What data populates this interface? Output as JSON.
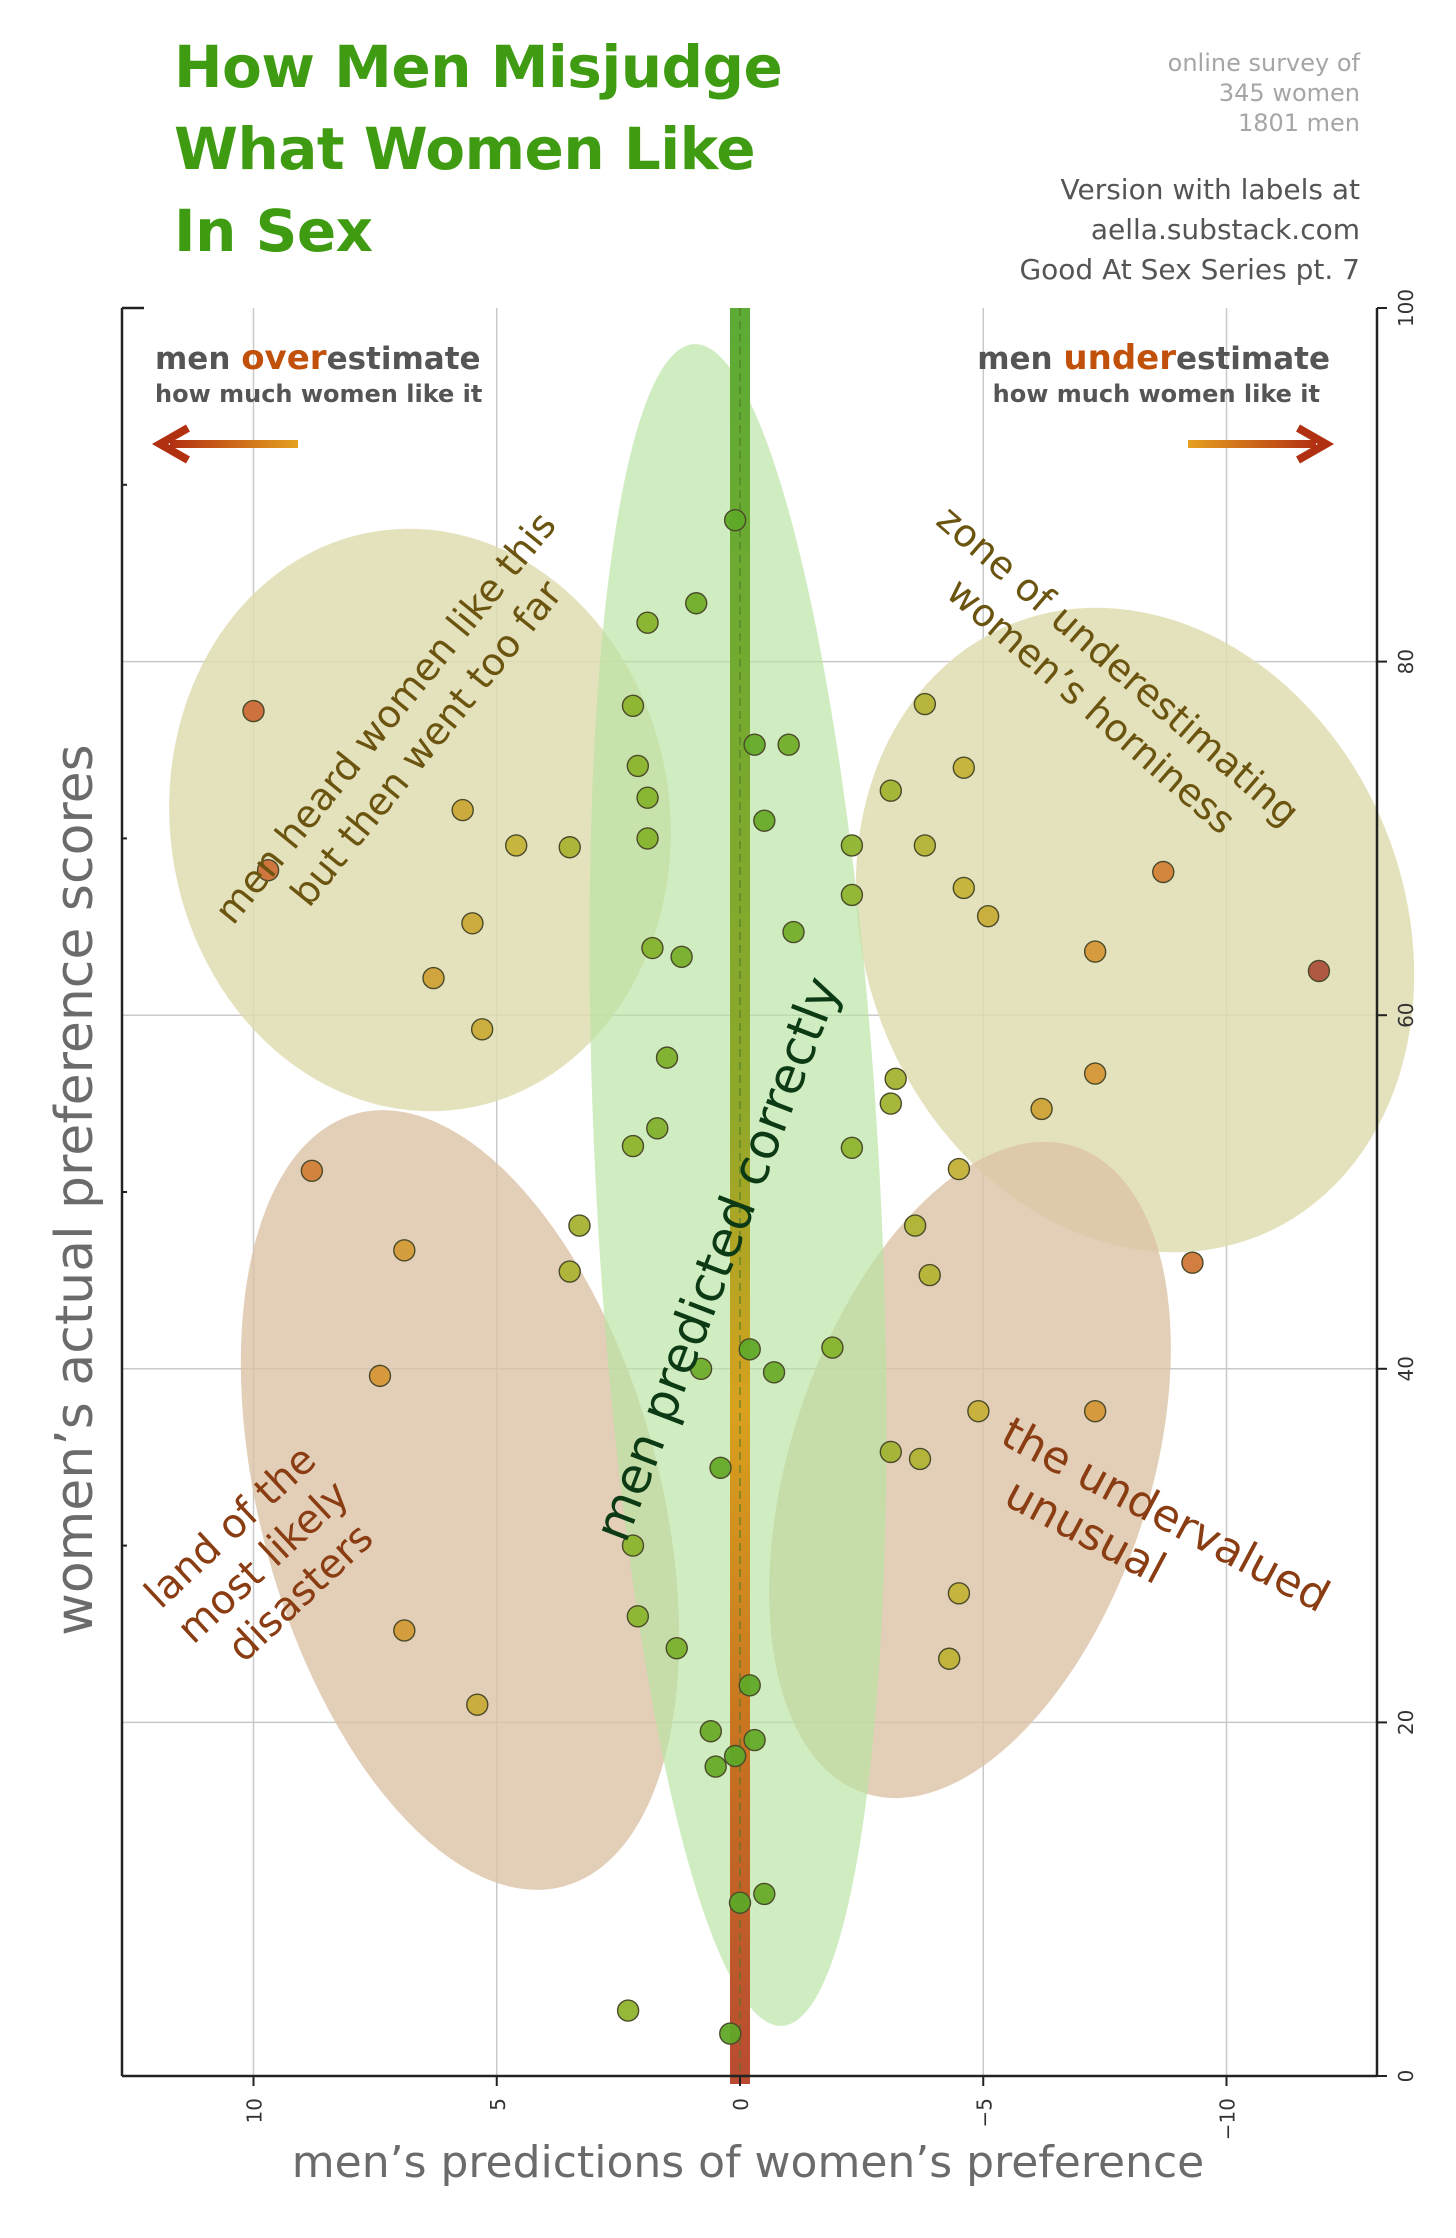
{
  "title_lines": [
    "How Men Misjudge",
    "What Women Like",
    "In Sex"
  ],
  "survey_lines": [
    "online survey of",
    "345 women",
    "1801 men"
  ],
  "credit_lines": [
    "Version with labels at",
    "aella.substack.com",
    "Good At Sex Series pt. 7"
  ],
  "colors": {
    "title": "#3f9c12",
    "over_under_accent": "#c0500a",
    "region_label_olive": "#6b5410",
    "region_label_rust": "#8a3d12",
    "correct_label": "#0c3a14",
    "green_zone": "#b7e4a2",
    "khaki_zone": "#dfddb0",
    "tan_zone": "#dcc3a6"
  },
  "banners": {
    "left": {
      "prefix": "men ",
      "accent": "over",
      "suffix": "estimate",
      "sub": "how much women like it"
    },
    "right": {
      "prefix": "men ",
      "accent": "under",
      "suffix": "estimate",
      "sub": "how much women like it"
    }
  },
  "region_labels": {
    "went_too_far": [
      "men heard women like this",
      "but then went too far"
    ],
    "underestimating": [
      "zone of underestimating",
      "women’s horniness"
    ],
    "disasters": [
      "land of the",
      "most likely",
      "disasters"
    ],
    "undervalued": [
      "the undervalued",
      "unusual"
    ],
    "correct": "men predicted correctly"
  },
  "chart_data": {
    "type": "scatter",
    "xlabel": "men’s predictions of women’s preference",
    "ylabel": "women’s actual preference scores",
    "xlim": [
      13,
      -13
    ],
    "ylim": [
      0,
      100
    ],
    "x_ticks": [
      10,
      5,
      0,
      -5,
      -10
    ],
    "x_tick_labels": [
      "10",
      "5",
      "0",
      "−5",
      "−10"
    ],
    "y_ticks": [
      0,
      20,
      40,
      60,
      80,
      100
    ],
    "y_tick_labels": [
      "0",
      "20",
      "40",
      "60",
      "80",
      "100"
    ],
    "grid": true,
    "points": [
      {
        "x": 0.1,
        "y": 88
      },
      {
        "x": 0.9,
        "y": 83.3
      },
      {
        "x": 1.9,
        "y": 82.2
      },
      {
        "x": 10.0,
        "y": 77.2
      },
      {
        "x": 2.2,
        "y": 77.5
      },
      {
        "x": 2.1,
        "y": 74.1
      },
      {
        "x": 1.9,
        "y": 72.3
      },
      {
        "x": 1.9,
        "y": 70.0
      },
      {
        "x": -0.3,
        "y": 75.3
      },
      {
        "x": -1.0,
        "y": 75.3
      },
      {
        "x": -0.5,
        "y": 71.0
      },
      {
        "x": 5.7,
        "y": 71.6
      },
      {
        "x": 4.6,
        "y": 69.6
      },
      {
        "x": 3.5,
        "y": 69.5
      },
      {
        "x": 9.7,
        "y": 68.2
      },
      {
        "x": 5.5,
        "y": 65.2
      },
      {
        "x": 1.8,
        "y": 63.8
      },
      {
        "x": 1.2,
        "y": 63.3
      },
      {
        "x": -1.1,
        "y": 64.7
      },
      {
        "x": -2.3,
        "y": 66.8
      },
      {
        "x": -2.3,
        "y": 69.6
      },
      {
        "x": 6.3,
        "y": 62.1
      },
      {
        "x": 5.3,
        "y": 59.2
      },
      {
        "x": 1.5,
        "y": 57.6
      },
      {
        "x": 1.7,
        "y": 53.6
      },
      {
        "x": 2.2,
        "y": 52.6
      },
      {
        "x": -2.3,
        "y": 52.5
      },
      {
        "x": 8.8,
        "y": 51.2
      },
      {
        "x": 3.3,
        "y": 48.1
      },
      {
        "x": 3.5,
        "y": 45.5
      },
      {
        "x": 6.9,
        "y": 46.7
      },
      {
        "x": -3.6,
        "y": 48.1
      },
      {
        "x": -3.9,
        "y": 45.3
      },
      {
        "x": 0.8,
        "y": 40.0
      },
      {
        "x": -0.2,
        "y": 41.1
      },
      {
        "x": -0.7,
        "y": 39.8
      },
      {
        "x": -1.9,
        "y": 41.2
      },
      {
        "x": 7.4,
        "y": 39.6
      },
      {
        "x": -3.1,
        "y": 35.3
      },
      {
        "x": -3.7,
        "y": 34.9
      },
      {
        "x": 0.4,
        "y": 34.4
      },
      {
        "x": 2.2,
        "y": 30.0
      },
      {
        "x": 2.1,
        "y": 26.0
      },
      {
        "x": 1.3,
        "y": 24.2
      },
      {
        "x": 6.9,
        "y": 25.2
      },
      {
        "x": 5.4,
        "y": 21.0
      },
      {
        "x": -0.2,
        "y": 22.1
      },
      {
        "x": 0.6,
        "y": 19.5
      },
      {
        "x": -0.3,
        "y": 19.0
      },
      {
        "x": 0.1,
        "y": 18.1
      },
      {
        "x": 0.5,
        "y": 17.5
      },
      {
        "x": 0.0,
        "y": 9.8
      },
      {
        "x": -0.5,
        "y": 10.3
      },
      {
        "x": 2.3,
        "y": 3.7
      },
      {
        "x": 0.2,
        "y": 2.4
      },
      {
        "x": -4.6,
        "y": 74.0
      },
      {
        "x": -3.8,
        "y": 77.6
      },
      {
        "x": -3.1,
        "y": 72.7
      },
      {
        "x": -3.8,
        "y": 69.6
      },
      {
        "x": -4.6,
        "y": 67.2
      },
      {
        "x": -5.1,
        "y": 65.6
      },
      {
        "x": -8.7,
        "y": 68.1
      },
      {
        "x": -7.3,
        "y": 63.6
      },
      {
        "x": -11.9,
        "y": 62.5
      },
      {
        "x": -3.2,
        "y": 56.4
      },
      {
        "x": -3.1,
        "y": 55.0
      },
      {
        "x": -6.2,
        "y": 54.7
      },
      {
        "x": -7.3,
        "y": 56.7
      },
      {
        "x": -4.5,
        "y": 51.3
      },
      {
        "x": -9.3,
        "y": 46.0
      },
      {
        "x": -4.9,
        "y": 37.6
      },
      {
        "x": -7.3,
        "y": 37.6
      },
      {
        "x": -4.5,
        "y": 27.3
      },
      {
        "x": -4.3,
        "y": 23.6
      }
    ]
  }
}
